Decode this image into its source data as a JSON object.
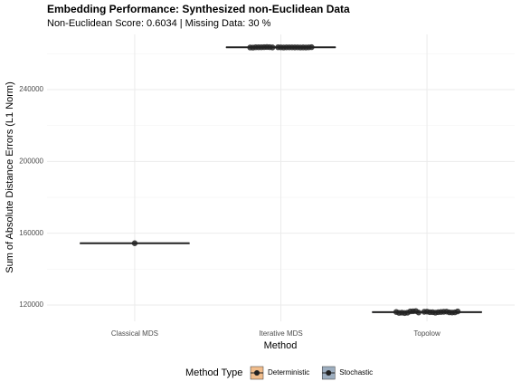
{
  "chart_data": {
    "type": "box",
    "title": "Embedding Performance: Synthesized non-Euclidean Data",
    "subtitle": "Non-Euclidean Score: 0.6034 | Missing Data: 30 %",
    "x_label": "Method",
    "y_label": "Sum of Absolute Distance Errors (L1 Norm)",
    "categories": [
      "Classical MDS",
      "Iterative MDS",
      "Topolow"
    ],
    "values": [
      154400,
      263600,
      116000
    ],
    "q1": [
      154400,
      263450,
      115800
    ],
    "q3": [
      154400,
      263750,
      116250
    ],
    "points": [
      [
        154400
      ],
      [
        263500,
        263600,
        263700,
        263550,
        263650,
        263450,
        263600,
        263750,
        263500,
        263600,
        263650,
        263550,
        263700,
        263600,
        263500,
        263650,
        263600,
        263550,
        263700,
        263600,
        263650,
        263500
      ],
      [
        116100,
        115700,
        116400,
        115900,
        116200,
        115600,
        116000,
        116500,
        115800,
        116300,
        115700,
        116100,
        116600,
        115900,
        116000,
        115500,
        116200,
        115800,
        116400,
        116000,
        115700,
        116300
      ]
    ],
    "box_type": [
      0,
      1,
      1
    ],
    "legend": {
      "title": "Method Type",
      "position": "bottom",
      "entries": [
        {
          "name": "Deterministic",
          "color": "#e8913f"
        },
        {
          "name": "Stochastic",
          "color": "#5b7896"
        }
      ]
    },
    "ylim": [
      110900,
      270800
    ],
    "yticks": [
      120000,
      160000,
      200000,
      240000
    ],
    "grid": true
  }
}
